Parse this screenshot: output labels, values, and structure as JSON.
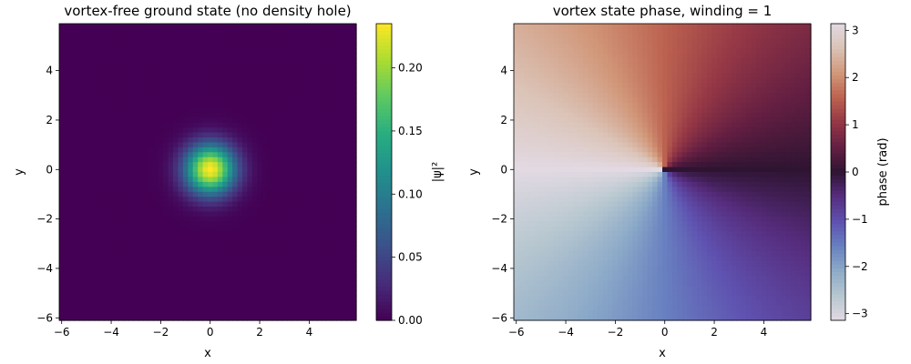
{
  "chart_data": [
    {
      "type": "heatmap",
      "title": "vortex-free ground state (no density hole)",
      "xlabel": "x",
      "ylabel": "y",
      "xlim": [
        -6.1,
        5.9
      ],
      "ylim": [
        -6.1,
        5.9
      ],
      "xticks": [
        -6,
        -4,
        -2,
        0,
        2,
        4
      ],
      "yticks": [
        -6,
        -4,
        -2,
        0,
        2,
        4
      ],
      "grid": false,
      "field": "gaussian density |psi|^2 centered at origin",
      "peak_value": 0.235,
      "peak_location": [
        0,
        0
      ],
      "colormap": "viridis",
      "colorbar": {
        "label": "|ψ|²",
        "range": [
          0.0,
          0.235
        ],
        "ticks": [
          "0.00",
          "0.05",
          "0.10",
          "0.15",
          "0.20"
        ]
      }
    },
    {
      "type": "heatmap",
      "title": "vortex state phase, winding = 1",
      "xlabel": "x",
      "ylabel": "y",
      "xlim": [
        -6.1,
        5.9
      ],
      "ylim": [
        -6.1,
        5.9
      ],
      "xticks": [
        -6,
        -4,
        -2,
        0,
        2,
        4
      ],
      "yticks": [
        -6,
        -4,
        -2,
        0,
        2,
        4
      ],
      "grid": false,
      "field": "phase = atan2(y, x), single vortex at origin",
      "winding": 1,
      "colormap": "twilight",
      "colorbar": {
        "label": "phase (rad)",
        "range": [
          -3.14159,
          3.14159
        ],
        "ticks": [
          "−3",
          "−2",
          "−1",
          "0",
          "1",
          "2",
          "3"
        ]
      }
    }
  ]
}
